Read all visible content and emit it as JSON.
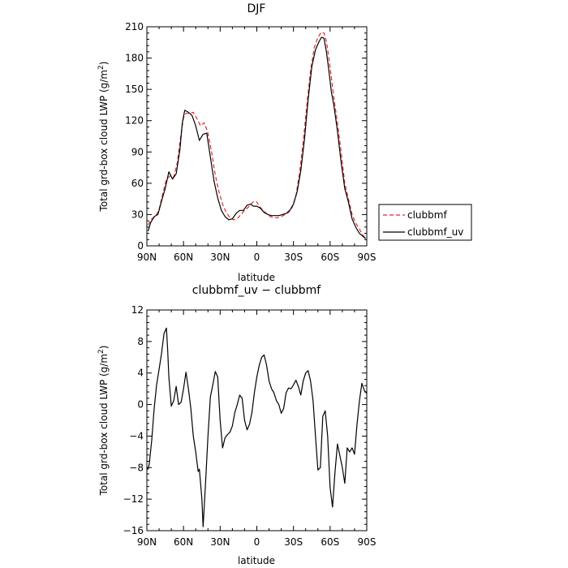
{
  "chart_data": [
    {
      "type": "line",
      "title": "DJF",
      "xlabel": "latitude",
      "ylabel": "Total grd-box cloud LWP (g/m",
      "ylabel_sup": "2",
      "ylabel_end": ")",
      "xlim": [
        -90,
        90
      ],
      "ylim": [
        0,
        210
      ],
      "xticks": [
        -90,
        -60,
        -30,
        0,
        30,
        60,
        90
      ],
      "xtick_labels": [
        "90N",
        "60N",
        "30N",
        "0",
        "30S",
        "60S",
        "90S"
      ],
      "yticks": [
        0,
        30,
        60,
        90,
        120,
        150,
        180,
        210
      ],
      "ytick_labels": [
        "0",
        "30",
        "60",
        "90",
        "120",
        "150",
        "180",
        "210"
      ],
      "legend": {
        "placement": "outside-right"
      },
      "series": [
        {
          "name": "clubbmf",
          "style": "dashed",
          "color": "#e8262b",
          "x": [
            -89,
            -86,
            -83,
            -80,
            -77,
            -74,
            -71,
            -68,
            -65,
            -62,
            -60,
            -58,
            -55,
            -52,
            -49,
            -46,
            -43,
            -40,
            -37,
            -34,
            -31,
            -28,
            -25,
            -22,
            -19,
            -16,
            -13,
            -10,
            -7,
            -4,
            -2,
            0,
            2,
            5,
            8,
            11,
            14,
            17,
            20,
            23,
            26,
            29,
            32,
            35,
            38,
            41,
            44,
            47,
            50,
            53,
            55,
            57,
            59,
            61,
            63,
            66,
            69,
            72,
            75,
            78,
            81,
            84,
            87,
            89
          ],
          "y": [
            20,
            26,
            28,
            35,
            50,
            64,
            67,
            66,
            80,
            108,
            123,
            127,
            127,
            128,
            122,
            115,
            118,
            108,
            90,
            68,
            52,
            40,
            32,
            27,
            25,
            26,
            30,
            34,
            37,
            41,
            43,
            42,
            38,
            34,
            31,
            28,
            27,
            27,
            28,
            30,
            32,
            37,
            48,
            70,
            100,
            135,
            168,
            190,
            200,
            205,
            204,
            196,
            180,
            162,
            142,
            118,
            90,
            60,
            45,
            30,
            22,
            16,
            10,
            7
          ]
        },
        {
          "name": "clubbmf_uv",
          "style": "solid",
          "color": "#000000",
          "x": [
            -89,
            -87,
            -84,
            -81,
            -78,
            -75,
            -72,
            -69,
            -66,
            -63,
            -61,
            -59,
            -56,
            -53,
            -50,
            -47,
            -44,
            -41,
            -38,
            -35,
            -32,
            -29,
            -26,
            -23,
            -20,
            -17,
            -14,
            -11,
            -8,
            -5,
            -3,
            0,
            3,
            6,
            9,
            12,
            15,
            18,
            21,
            24,
            27,
            30,
            33,
            36,
            39,
            42,
            45,
            48,
            51,
            53,
            55,
            57,
            59,
            61,
            63,
            66,
            69,
            72,
            75,
            78,
            81,
            84,
            87,
            89
          ],
          "y": [
            14,
            22,
            28,
            30,
            43,
            55,
            71,
            64,
            69,
            92,
            118,
            130,
            128,
            125,
            115,
            101,
            107,
            108,
            85,
            62,
            46,
            34,
            28,
            25,
            26,
            31,
            34,
            34,
            39,
            40,
            38,
            38,
            36,
            32,
            30,
            29,
            29,
            29,
            30,
            31,
            34,
            40,
            52,
            72,
            102,
            140,
            172,
            188,
            196,
            200,
            199,
            186,
            168,
            148,
            135,
            110,
            80,
            55,
            42,
            26,
            18,
            12,
            9,
            7
          ]
        }
      ]
    },
    {
      "type": "line",
      "title": "clubbmf_uv − clubbmf",
      "xlabel": "latitude",
      "ylabel": "Total grd-box cloud LWP (g/m",
      "ylabel_sup": "2",
      "ylabel_end": ")",
      "xlim": [
        -90,
        90
      ],
      "ylim": [
        -16,
        12
      ],
      "xticks": [
        -90,
        -60,
        -30,
        0,
        30,
        60,
        90
      ],
      "xtick_labels": [
        "90N",
        "60N",
        "30N",
        "0",
        "30S",
        "60S",
        "90S"
      ],
      "yticks": [
        -16,
        -12,
        -8,
        -4,
        0,
        4,
        8,
        12
      ],
      "ytick_labels": [
        "−16",
        "−12",
        "−8",
        "−4",
        "0",
        "4",
        "8",
        "12"
      ],
      "series": [
        {
          "style": "solid",
          "color": "#000000",
          "x": [
            -90,
            -89,
            -88,
            -86,
            -84,
            -82,
            -80,
            -78,
            -76,
            -74,
            -73,
            -72,
            -70,
            -68,
            -66,
            -64,
            -62,
            -60,
            -58,
            -56,
            -54,
            -52,
            -50,
            -48,
            -47,
            -46,
            -45,
            -44,
            -42,
            -40,
            -38,
            -36,
            -34,
            -32,
            -30,
            -28,
            -26,
            -24,
            -22,
            -20,
            -18,
            -16,
            -14,
            -12,
            -10,
            -8,
            -6,
            -4,
            -2,
            0,
            2,
            4,
            6,
            8,
            10,
            12,
            14,
            16,
            18,
            20,
            22,
            24,
            26,
            28,
            30,
            32,
            34,
            36,
            38,
            40,
            42,
            44,
            46,
            48,
            50,
            52,
            54,
            56,
            58,
            60,
            62,
            64,
            66,
            68,
            70,
            72,
            74,
            76,
            78,
            80,
            82,
            84,
            86,
            88,
            90
          ],
          "y": [
            -8.0,
            -8.2,
            -7.5,
            -4.5,
            -0.5,
            2.5,
            4.5,
            6.5,
            9.0,
            9.7,
            7.0,
            3.5,
            -0.2,
            0.5,
            2.3,
            0.0,
            0.3,
            2.0,
            4.1,
            2.0,
            -0.5,
            -4.0,
            -6.0,
            -8.5,
            -8.2,
            -10.0,
            -12.0,
            -15.5,
            -10.0,
            -4.0,
            1.0,
            2.5,
            4.2,
            3.5,
            -2.0,
            -5.5,
            -4.2,
            -3.8,
            -3.5,
            -2.7,
            -1.0,
            0.0,
            1.2,
            0.8,
            -2.0,
            -3.2,
            -2.5,
            -1.0,
            1.5,
            3.5,
            5.0,
            6.0,
            6.3,
            5.0,
            3.0,
            2.0,
            1.5,
            0.5,
            0.0,
            -1.1,
            -0.5,
            1.5,
            2.1,
            2.0,
            2.5,
            3.1,
            2.3,
            1.2,
            3.0,
            4.0,
            4.3,
            3.0,
            0.5,
            -4.0,
            -8.3,
            -8.0,
            -1.5,
            -0.8,
            -4.0,
            -10.5,
            -13.0,
            -8.5,
            -5.0,
            -6.5,
            -8.0,
            -10.0,
            -5.5,
            -6.0,
            -5.5,
            -6.3,
            -2.5,
            0.5,
            2.7,
            1.8,
            1.4
          ]
        }
      ]
    }
  ]
}
